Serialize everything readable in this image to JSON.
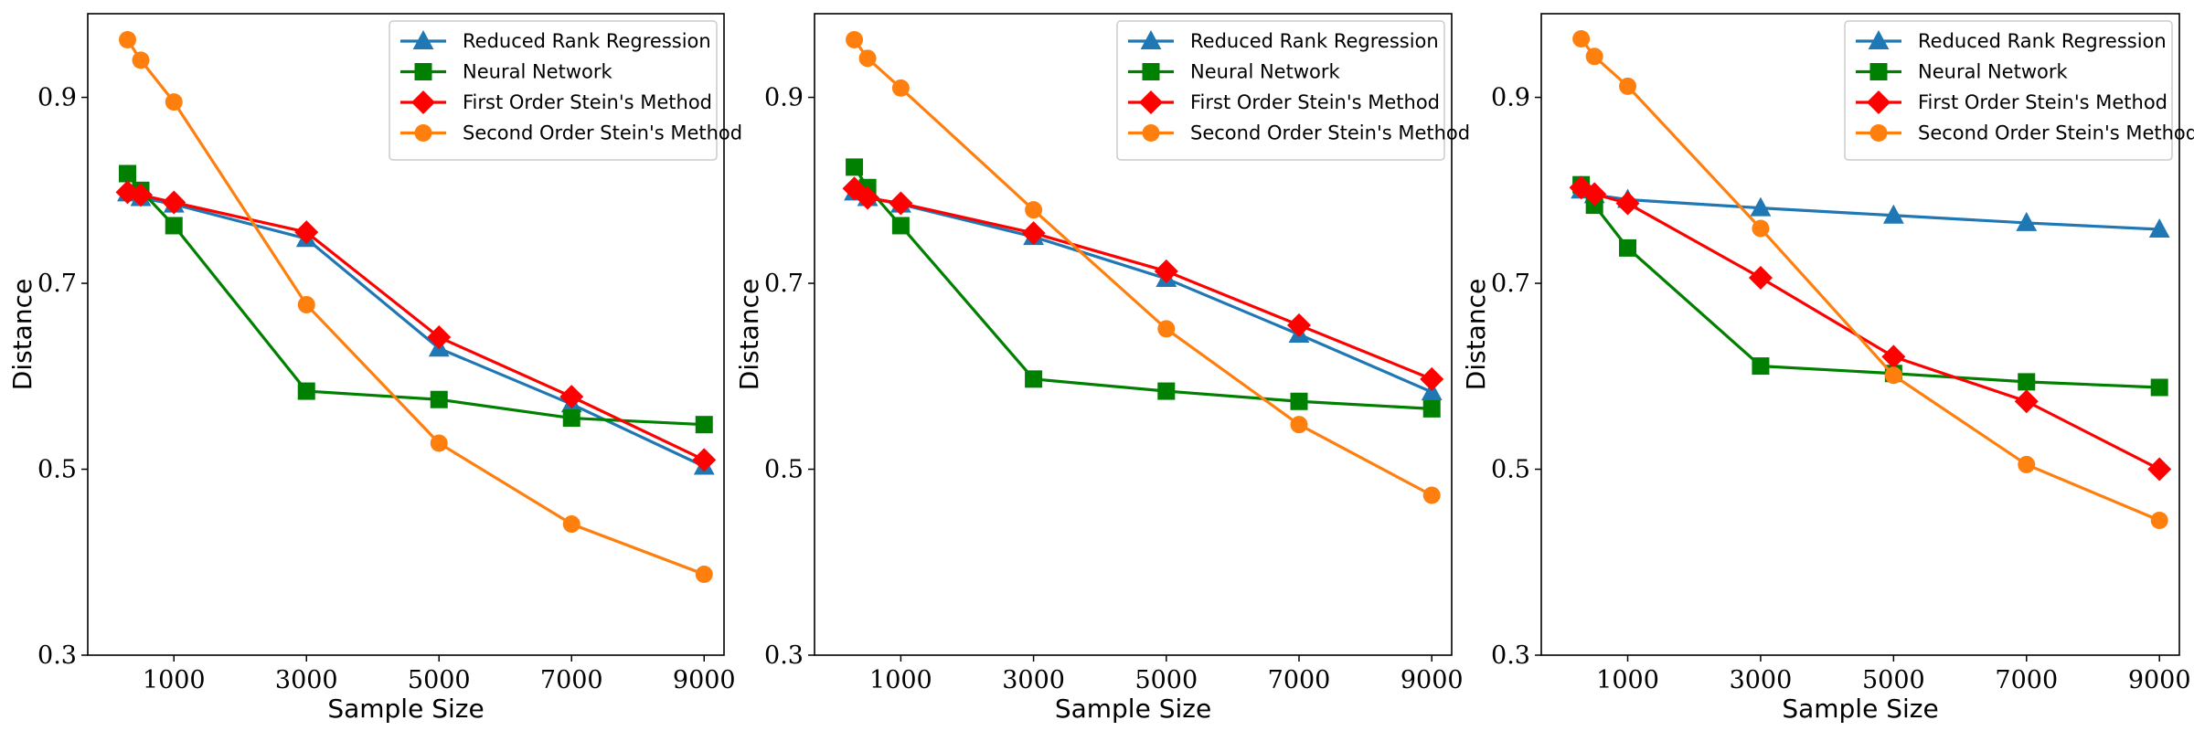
{
  "chart_data": [
    {
      "type": "line",
      "xlabel": "Sample Size",
      "ylabel": "Distance",
      "x": [
        300,
        500,
        1000,
        3000,
        5000,
        7000,
        9000
      ],
      "xticks": [
        1000,
        3000,
        5000,
        7000,
        9000
      ],
      "xtick_labels": [
        "1000",
        "3000",
        "5000",
        "7000",
        "9000"
      ],
      "xlim": [
        -300,
        9300
      ],
      "yticks": [
        0.3,
        0.5,
        0.7,
        0.9
      ],
      "ytick_labels": [
        "0.3",
        "0.5",
        "0.7",
        "0.9"
      ],
      "ylim": [
        0.3,
        0.99
      ],
      "legend": "top-right",
      "series": [
        {
          "name": "Reduced Rank Regression",
          "color": "#1f77b4",
          "marker": "triangle",
          "values": [
            0.797,
            0.792,
            0.785,
            0.748,
            0.63,
            0.57,
            0.503
          ]
        },
        {
          "name": "Neural Network",
          "color": "#008000",
          "marker": "square",
          "values": [
            0.818,
            0.8,
            0.762,
            0.584,
            0.575,
            0.555,
            0.548
          ]
        },
        {
          "name": "First Order Stein's Method",
          "color": "#ff0000",
          "marker": "diamond",
          "values": [
            0.798,
            0.795,
            0.787,
            0.755,
            0.642,
            0.578,
            0.51
          ]
        },
        {
          "name": "Second Order Stein's Method",
          "color": "#ff7f0e",
          "marker": "circle",
          "values": [
            0.962,
            0.94,
            0.895,
            0.677,
            0.528,
            0.441,
            0.387
          ]
        }
      ]
    },
    {
      "type": "line",
      "xlabel": "Sample Size",
      "ylabel": "Distance",
      "x": [
        300,
        500,
        1000,
        3000,
        5000,
        7000,
        9000
      ],
      "xticks": [
        1000,
        3000,
        5000,
        7000,
        9000
      ],
      "xtick_labels": [
        "1000",
        "3000",
        "5000",
        "7000",
        "9000"
      ],
      "xlim": [
        -300,
        9300
      ],
      "yticks": [
        0.3,
        0.5,
        0.7,
        0.9
      ],
      "ytick_labels": [
        "0.3",
        "0.5",
        "0.7",
        "0.9"
      ],
      "ylim": [
        0.3,
        0.99
      ],
      "legend": "top-right",
      "series": [
        {
          "name": "Reduced Rank Regression",
          "color": "#1f77b4",
          "marker": "triangle",
          "values": [
            0.798,
            0.792,
            0.785,
            0.75,
            0.705,
            0.645,
            0.583
          ]
        },
        {
          "name": "Neural Network",
          "color": "#008000",
          "marker": "square",
          "values": [
            0.825,
            0.803,
            0.762,
            0.597,
            0.584,
            0.573,
            0.565
          ]
        },
        {
          "name": "First Order Stein's Method",
          "color": "#ff0000",
          "marker": "diamond",
          "values": [
            0.802,
            0.792,
            0.786,
            0.754,
            0.713,
            0.655,
            0.597
          ]
        },
        {
          "name": "Second Order Stein's Method",
          "color": "#ff7f0e",
          "marker": "circle",
          "values": [
            0.962,
            0.942,
            0.91,
            0.779,
            0.651,
            0.548,
            0.472
          ]
        }
      ]
    },
    {
      "type": "line",
      "xlabel": "Sample Size",
      "ylabel": "Distance",
      "x": [
        300,
        500,
        1000,
        3000,
        5000,
        7000,
        9000
      ],
      "xticks": [
        1000,
        3000,
        5000,
        7000,
        9000
      ],
      "xtick_labels": [
        "1000",
        "3000",
        "5000",
        "7000",
        "9000"
      ],
      "xlim": [
        -300,
        9300
      ],
      "yticks": [
        0.3,
        0.5,
        0.7,
        0.9
      ],
      "ytick_labels": [
        "0.3",
        "0.5",
        "0.7",
        "0.9"
      ],
      "ylim": [
        0.3,
        0.99
      ],
      "legend": "top-right",
      "series": [
        {
          "name": "Reduced Rank Regression",
          "color": "#1f77b4",
          "marker": "triangle",
          "values": [
            0.8,
            0.795,
            0.79,
            0.781,
            0.773,
            0.765,
            0.758
          ]
        },
        {
          "name": "Neural Network",
          "color": "#008000",
          "marker": "square",
          "values": [
            0.806,
            0.784,
            0.738,
            0.611,
            0.603,
            0.594,
            0.588
          ]
        },
        {
          "name": "First Order Stein's Method",
          "color": "#ff0000",
          "marker": "diamond",
          "values": [
            0.803,
            0.796,
            0.786,
            0.706,
            0.621,
            0.573,
            0.5
          ]
        },
        {
          "name": "Second Order Stein's Method",
          "color": "#ff7f0e",
          "marker": "circle",
          "values": [
            0.963,
            0.944,
            0.912,
            0.759,
            0.601,
            0.505,
            0.445
          ]
        }
      ]
    }
  ]
}
